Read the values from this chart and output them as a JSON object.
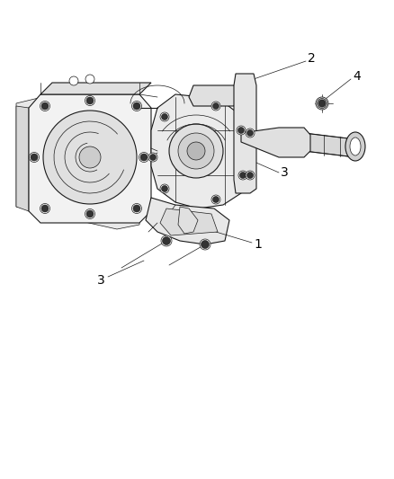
{
  "background_color": "#ffffff",
  "line_color": "#1a1a1a",
  "label_color": "#000000",
  "fig_width": 4.39,
  "fig_height": 5.33,
  "dpi": 100,
  "label_fontsize": 10,
  "lw_main": 0.8,
  "lw_thin": 0.5,
  "lw_thick": 1.2,
  "bolt_fill": "#333333",
  "bolt_size": 0.008,
  "body_fill": "#f2f2f2",
  "shadow_fill": "#dcdcdc"
}
